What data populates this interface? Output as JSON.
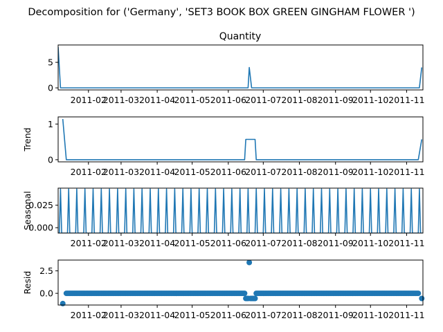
{
  "chart_data": [
    {
      "type": "line",
      "suptitle": "Decomposition for ('Germany', 'SET3 BOOK BOX GREEN GINGHAM FLOWER ')",
      "title": "Quantity",
      "ylabel": "",
      "ylim": [
        -0.4,
        8.4
      ],
      "yticks": [
        0,
        5
      ],
      "ytick_labels": [
        "0",
        "5"
      ],
      "xticks": [
        "2011-02-01",
        "2011-03-01",
        "2011-04-01",
        "2011-05-01",
        "2011-06-01",
        "2011-07-01",
        "2011-08-01",
        "2011-09-01",
        "2011-10-01",
        "2011-11-01"
      ],
      "xtick_labels": [
        "2011-02",
        "2011-03",
        "2011-04",
        "2011-05",
        "2011-06",
        "2011-07",
        "2011-08",
        "2011-09",
        "2011-10",
        "2011-11"
      ],
      "xlim": [
        "2011-01-06",
        "2011-11-15"
      ],
      "series": [
        {
          "x": [
            "2011-01-06",
            "2011-01-08",
            "2011-06-18",
            "2011-06-19",
            "2011-06-21",
            "2011-11-12",
            "2011-11-14"
          ],
          "y": [
            8,
            0,
            0,
            4,
            0,
            0,
            4
          ]
        }
      ]
    },
    {
      "type": "line",
      "ylabel": "Trend",
      "ylim": [
        -0.06,
        1.2
      ],
      "yticks": [
        0,
        1
      ],
      "ytick_labels": [
        "0",
        "1"
      ],
      "xticks": [
        "2011-02-01",
        "2011-03-01",
        "2011-04-01",
        "2011-05-01",
        "2011-06-01",
        "2011-07-01",
        "2011-08-01",
        "2011-09-01",
        "2011-10-01",
        "2011-11-01"
      ],
      "xtick_labels": [
        "2011-02",
        "2011-03",
        "2011-04",
        "2011-05",
        "2011-06",
        "2011-07",
        "2011-08",
        "2011-09",
        "2011-10",
        "2011-11"
      ],
      "xlim": [
        "2011-01-06",
        "2011-11-15"
      ],
      "series": [
        {
          "x": [
            "2011-01-10",
            "2011-01-13",
            "2011-06-15",
            "2011-06-16",
            "2011-06-24",
            "2011-06-25",
            "2011-11-11",
            "2011-11-14"
          ],
          "y": [
            1.14,
            0,
            0,
            0.57,
            0.57,
            0,
            0,
            0.57
          ]
        }
      ]
    },
    {
      "type": "line",
      "ylabel": "Seasonal",
      "ylim": [
        -0.006,
        0.044
      ],
      "yticks": [
        0,
        0.025
      ],
      "ytick_labels": [
        "0.000",
        "0.025"
      ],
      "xticks": [
        "2011-02-01",
        "2011-03-01",
        "2011-04-01",
        "2011-05-01",
        "2011-06-01",
        "2011-07-01",
        "2011-08-01",
        "2011-09-01",
        "2011-10-01",
        "2011-11-01"
      ],
      "xtick_labels": [
        "2011-02",
        "2011-03",
        "2011-04",
        "2011-05",
        "2011-06",
        "2011-07",
        "2011-08",
        "2011-09",
        "2011-10",
        "2011-11"
      ],
      "xlim": [
        "2011-01-06",
        "2011-11-15"
      ],
      "period_days": 7,
      "peak_value": 0.043,
      "base_value": -0.006,
      "first_peak": "2011-01-08"
    },
    {
      "type": "scatter",
      "ylabel": "Resid",
      "ylim": [
        -1.3,
        3.7
      ],
      "yticks": [
        0,
        2.5
      ],
      "ytick_labels": [
        "0.0",
        "2.5"
      ],
      "xticks": [
        "2011-02-01",
        "2011-03-01",
        "2011-04-01",
        "2011-05-01",
        "2011-06-01",
        "2011-07-01",
        "2011-08-01",
        "2011-09-01",
        "2011-10-01",
        "2011-11-01"
      ],
      "xtick_labels": [
        "2011-02",
        "2011-03",
        "2011-04",
        "2011-05",
        "2011-06",
        "2011-07",
        "2011-08",
        "2011-09",
        "2011-10",
        "2011-11"
      ],
      "xlim": [
        "2011-01-06",
        "2011-11-15"
      ],
      "series": [
        {
          "x": [
            "2011-01-10",
            "2011-06-16",
            "2011-06-17",
            "2011-06-18",
            "2011-06-19",
            "2011-06-20",
            "2011-06-21",
            "2011-06-22",
            "2011-06-23",
            "2011-06-24",
            "2011-11-14"
          ],
          "y": [
            -1.14,
            -0.57,
            -0.57,
            -0.57,
            3.43,
            -0.57,
            -0.57,
            -0.57,
            -0.57,
            -0.57,
            -0.57
          ]
        }
      ],
      "baseline_every_day_from": "2011-01-13",
      "baseline_every_day_to": "2011-11-11",
      "baseline_value": 0
    }
  ]
}
